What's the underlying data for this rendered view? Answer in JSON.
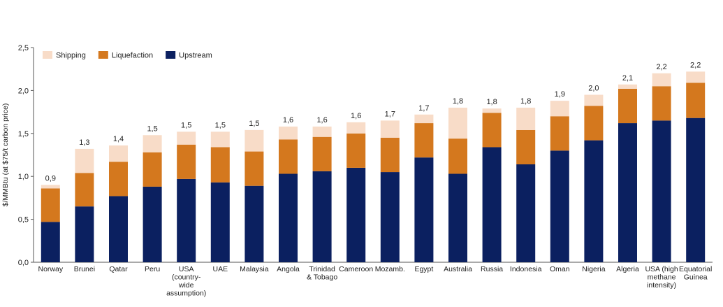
{
  "chart_data": {
    "type": "bar",
    "stacked": true,
    "ylabel": "$/MMBtu (at $75/t carbon price)",
    "ylim": [
      0,
      2.5
    ],
    "yticks": [
      "0,0",
      "0,5",
      "1,0",
      "1,5",
      "2,0",
      "2,5"
    ],
    "ytick_values": [
      0,
      0.5,
      1.0,
      1.5,
      2.0,
      2.5
    ],
    "legend_position": "top-left",
    "grid": false,
    "categories": [
      [
        "Norway"
      ],
      [
        "Brunei"
      ],
      [
        "Qatar"
      ],
      [
        "Peru"
      ],
      [
        "USA",
        "(country-",
        "wide",
        "assumption)"
      ],
      [
        "UAE"
      ],
      [
        "Malaysia"
      ],
      [
        "Angola"
      ],
      [
        "Trinidad",
        "& Tobago"
      ],
      [
        "Cameroon"
      ],
      [
        "Mozamb."
      ],
      [
        "Egypt"
      ],
      [
        "Australia"
      ],
      [
        "Russia"
      ],
      [
        "Indonesia"
      ],
      [
        "Oman"
      ],
      [
        "Nigeria"
      ],
      [
        "Algeria"
      ],
      [
        "USA (high",
        "methane",
        "intensity)"
      ],
      [
        "Equatorial",
        "Guinea"
      ]
    ],
    "series": [
      {
        "name": "Upstream",
        "color": "#0b2060",
        "values": [
          0.47,
          0.65,
          0.77,
          0.88,
          0.97,
          0.93,
          0.89,
          1.03,
          1.06,
          1.1,
          1.05,
          1.22,
          1.03,
          1.34,
          1.14,
          1.3,
          1.42,
          1.62,
          1.65,
          1.68
        ]
      },
      {
        "name": "Liquefaction",
        "color": "#d4781e",
        "values": [
          0.39,
          0.39,
          0.4,
          0.4,
          0.4,
          0.41,
          0.4,
          0.4,
          0.4,
          0.4,
          0.4,
          0.4,
          0.41,
          0.4,
          0.4,
          0.4,
          0.4,
          0.4,
          0.4,
          0.41
        ]
      },
      {
        "name": "Shipping",
        "color": "#f8dcc8",
        "values": [
          0.04,
          0.28,
          0.19,
          0.2,
          0.15,
          0.18,
          0.25,
          0.15,
          0.12,
          0.13,
          0.2,
          0.1,
          0.36,
          0.05,
          0.26,
          0.18,
          0.13,
          0.05,
          0.15,
          0.13
        ]
      }
    ],
    "totals": [
      "0,9",
      "1,3",
      "1,4",
      "1,5",
      "1,5",
      "1,5",
      "1,5",
      "1,6",
      "1,6",
      "1,6",
      "1,7",
      "1,7",
      "1,8",
      "1,8",
      "1,8",
      "1,9",
      "2,0",
      "2,1",
      "2,2",
      "2,2"
    ],
    "legend": [
      "Shipping",
      "Liquefaction",
      "Upstream"
    ]
  }
}
